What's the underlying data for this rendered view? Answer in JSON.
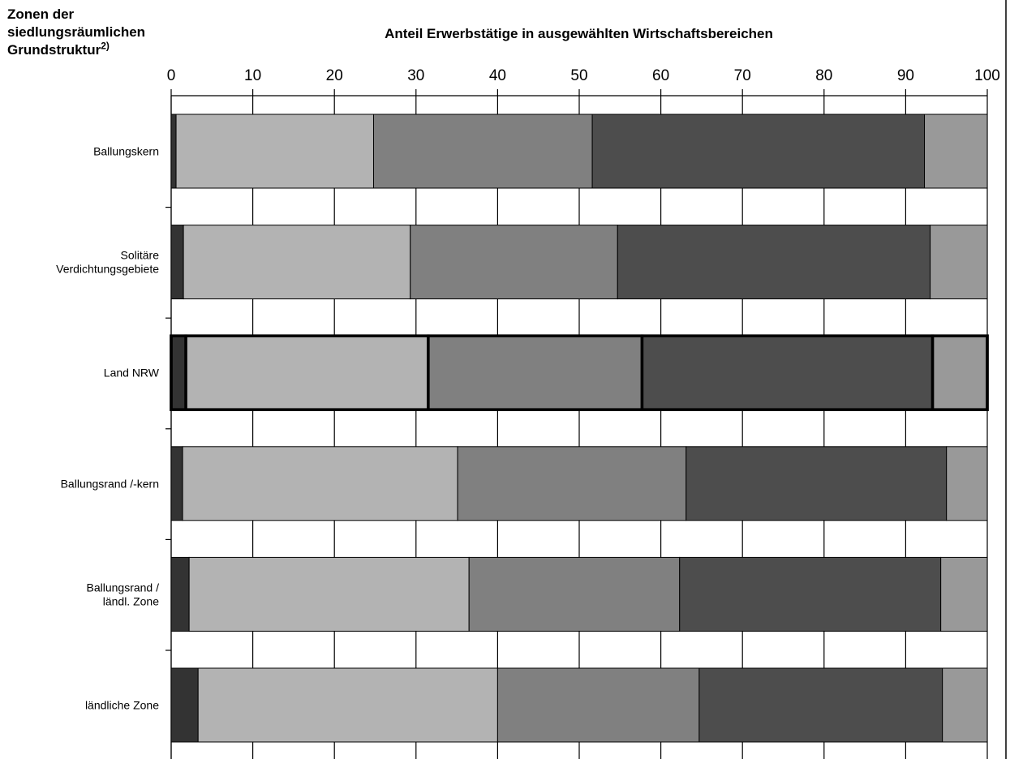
{
  "chart_data": {
    "type": "bar",
    "orientation": "horizontal",
    "stacked": true,
    "title": "Anteil Erwerbstätige in ausgewählten Wirtschaftsbereichen",
    "category_axis_title": "Zonen der siedlungsräumlichen Grundstruktur",
    "category_axis_title_lines": [
      "Zonen der",
      "siedlungsräumlichen",
      "Grundstruktur"
    ],
    "category_axis_title_sup": "2)",
    "xlim": [
      0,
      100
    ],
    "xticks": [
      "0",
      "10",
      "20",
      "30",
      "40",
      "50",
      "60",
      "70",
      "80",
      "90",
      "100"
    ],
    "grid": true,
    "categories": [
      "Ballungskern",
      "Solitäre Verdichtungsgebiete",
      "Land NRW",
      "Ballungsrand /-kern",
      "Ballungsrand / ländl. Zone",
      "ländliche Zone"
    ],
    "category_lines": [
      [
        "Ballungskern"
      ],
      [
        "Solitäre",
        "Verdichtungsgebiete"
      ],
      [
        "Land NRW"
      ],
      [
        "Ballungsrand /-kern"
      ],
      [
        "Ballungsrand /",
        "ländl. Zone"
      ],
      [
        "ländliche Zone"
      ]
    ],
    "highlighted_category": "Land NRW",
    "series": [
      {
        "color": "#333333",
        "values": [
          0.6,
          1.5,
          1.8,
          1.4,
          2.2,
          3.3
        ]
      },
      {
        "color": "#b3b3b3",
        "values": [
          24.2,
          27.8,
          29.7,
          33.7,
          34.3,
          36.7
        ]
      },
      {
        "color": "#808080",
        "values": [
          26.8,
          25.4,
          26.2,
          28.0,
          25.8,
          24.7
        ]
      },
      {
        "color": "#4d4d4d",
        "values": [
          40.7,
          38.3,
          35.6,
          31.9,
          32.0,
          29.8
        ]
      },
      {
        "color": "#999999",
        "values": [
          7.7,
          7.0,
          6.7,
          5.0,
          5.7,
          5.5
        ]
      }
    ]
  }
}
